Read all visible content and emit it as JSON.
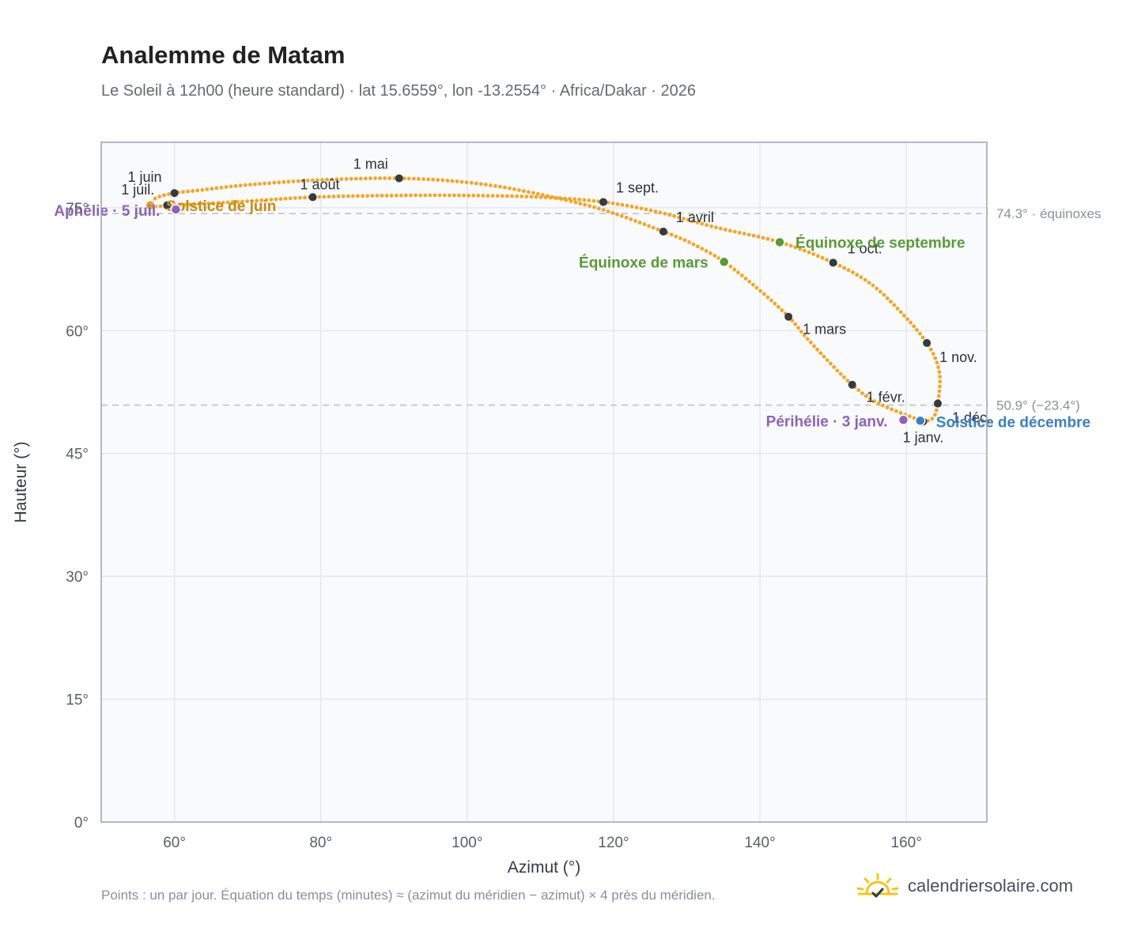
{
  "title": "Analemme de Matam",
  "subtitle": "Le Soleil à 12h00 (heure standard) · lat 15.6559°, lon -13.2554° · Africa/Dakar · 2026",
  "footnote": "Points : un par jour. Équation du temps (minutes) ≈ (azimut du méridien − azimut) × 4 près du méridien.",
  "brand": {
    "text": "calendriersolaire.com",
    "icon": "sun-logo-icon"
  },
  "colors": {
    "curve": "#f5a623",
    "month_point": "#333a44",
    "equinox": "#5a9a35",
    "solstice_june": "#e0a030",
    "solstice_june_label": "#c98a10",
    "solstice_december": "#3a7fc4",
    "perihelion_aphelion": "#8e63b8",
    "reference_line": "#c0c4ca",
    "plot_background": "#f8fafc",
    "grid": "#e4e8ee",
    "axis_border": "#9aa3ae"
  },
  "chart_data": {
    "type": "scatter",
    "title": "Analemme de Matam",
    "xlabel": "Azimut (°)",
    "ylabel": "Hauteur (°)",
    "xlim": [
      50,
      171
    ],
    "ylim": [
      0,
      83
    ],
    "grid": true,
    "x_ticks": [
      60,
      80,
      100,
      120,
      140,
      160
    ],
    "x_tick_labels": [
      "60°",
      "80°",
      "100°",
      "120°",
      "140°",
      "160°"
    ],
    "y_ticks": [
      0,
      15,
      30,
      45,
      60,
      75
    ],
    "y_tick_labels": [
      "0°",
      "15°",
      "30°",
      "45°",
      "60°",
      "75°"
    ],
    "reference_lines": [
      {
        "altitude": 74.3,
        "label": "74.3° · équinoxes"
      },
      {
        "altitude": 50.9,
        "label": "50.9° (−23.4°)"
      }
    ],
    "month_points": [
      {
        "label": "1 janv.",
        "azimuth": 162.3,
        "altitude": 48.9
      },
      {
        "label": "1 févr.",
        "azimuth": 152.6,
        "altitude": 53.4
      },
      {
        "label": "1 mars",
        "azimuth": 143.9,
        "altitude": 61.7
      },
      {
        "label": "1 avril",
        "azimuth": 126.8,
        "altitude": 72.1
      },
      {
        "label": "1 mai",
        "azimuth": 90.7,
        "altitude": 78.6
      },
      {
        "label": "1 juin",
        "azimuth": 60.0,
        "altitude": 76.8
      },
      {
        "label": "1 juil.",
        "azimuth": 59.0,
        "altitude": 75.3
      },
      {
        "label": "1 août",
        "azimuth": 78.9,
        "altitude": 76.3
      },
      {
        "label": "1 sept.",
        "azimuth": 118.6,
        "altitude": 75.7
      },
      {
        "label": "1 oct.",
        "azimuth": 150.0,
        "altitude": 68.3
      },
      {
        "label": "1 nov.",
        "azimuth": 162.8,
        "altitude": 58.5
      },
      {
        "label": "1 déc.",
        "azimuth": 164.3,
        "altitude": 51.1
      }
    ],
    "events": [
      {
        "label": "Équinoxe de mars",
        "azimuth": 135.1,
        "altitude": 68.4,
        "kind": "equinox"
      },
      {
        "label": "Équinoxe de septembre",
        "azimuth": 142.7,
        "altitude": 70.8,
        "kind": "equinox"
      },
      {
        "label": "Solstice de juin",
        "azimuth": 56.7,
        "altitude": 75.3,
        "kind": "solstice_june"
      },
      {
        "label": "Solstice de décembre",
        "azimuth": 161.9,
        "altitude": 49.0,
        "kind": "solstice_december"
      },
      {
        "label": "Périhélie · 3 janv.",
        "azimuth": 159.6,
        "altitude": 49.1,
        "kind": "apsis"
      },
      {
        "label": "Aphélie · 5 juil.",
        "azimuth": 60.2,
        "altitude": 74.8,
        "kind": "apsis"
      }
    ],
    "curve_path": [
      [
        162.3,
        48.9
      ],
      [
        156.0,
        51.2
      ],
      [
        152.6,
        53.4
      ],
      [
        149.3,
        56.3
      ],
      [
        146.3,
        59.2
      ],
      [
        143.9,
        61.7
      ],
      [
        140.0,
        64.9
      ],
      [
        135.1,
        68.4
      ],
      [
        131.0,
        70.5
      ],
      [
        126.8,
        72.1
      ],
      [
        118.0,
        74.9
      ],
      [
        108.0,
        77.0
      ],
      [
        100.0,
        78.1
      ],
      [
        90.7,
        78.6
      ],
      [
        80.0,
        78.4
      ],
      [
        70.0,
        77.8
      ],
      [
        63.0,
        77.1
      ],
      [
        60.0,
        76.8
      ],
      [
        57.5,
        76.2
      ],
      [
        56.7,
        75.3
      ],
      [
        58.0,
        75.2
      ],
      [
        59.0,
        75.3
      ],
      [
        62.0,
        75.4
      ],
      [
        70.0,
        75.8
      ],
      [
        78.9,
        76.3
      ],
      [
        90.0,
        76.5
      ],
      [
        100.0,
        76.5
      ],
      [
        110.0,
        76.3
      ],
      [
        118.6,
        75.7
      ],
      [
        126.0,
        74.5
      ],
      [
        134.0,
        72.6
      ],
      [
        142.7,
        70.8
      ],
      [
        150.0,
        68.3
      ],
      [
        155.0,
        65.8
      ],
      [
        159.0,
        62.5
      ],
      [
        162.8,
        58.5
      ],
      [
        164.5,
        55.0
      ],
      [
        164.3,
        51.1
      ],
      [
        163.6,
        49.3
      ],
      [
        162.3,
        48.9
      ]
    ]
  }
}
